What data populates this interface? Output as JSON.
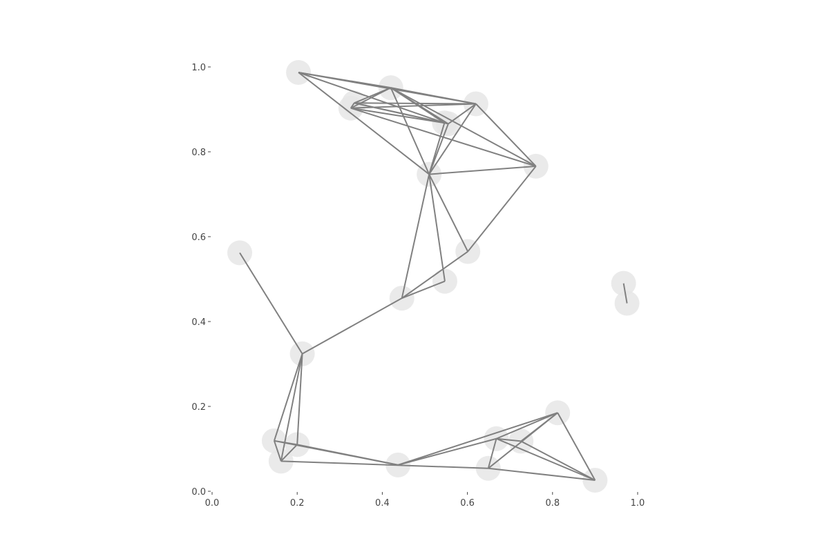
{
  "chart_data": {
    "type": "scatter",
    "title": "",
    "xlabel": "",
    "ylabel": "",
    "xlim": [
      0.0,
      1.0
    ],
    "ylim": [
      0.0,
      1.0
    ],
    "grid": false,
    "x_ticks": [
      "0.0",
      "0.2",
      "0.4",
      "0.6",
      "0.8",
      "1.0"
    ],
    "y_ticks": [
      "0.0",
      "0.2",
      "0.4",
      "0.6",
      "0.8",
      "1.0"
    ],
    "colors": {
      "edge": "#808080",
      "node": "#e6e6e6",
      "tick": "#444444"
    },
    "nodes": [
      {
        "x": 0.203,
        "y": 0.987
      },
      {
        "x": 0.334,
        "y": 0.915
      },
      {
        "x": 0.326,
        "y": 0.903
      },
      {
        "x": 0.42,
        "y": 0.951
      },
      {
        "x": 0.62,
        "y": 0.913
      },
      {
        "x": 0.546,
        "y": 0.868
      },
      {
        "x": 0.555,
        "y": 0.866
      },
      {
        "x": 0.761,
        "y": 0.766
      },
      {
        "x": 0.51,
        "y": 0.747
      },
      {
        "x": 0.065,
        "y": 0.562
      },
      {
        "x": 0.601,
        "y": 0.565
      },
      {
        "x": 0.547,
        "y": 0.495
      },
      {
        "x": 0.446,
        "y": 0.455
      },
      {
        "x": 0.967,
        "y": 0.49
      },
      {
        "x": 0.975,
        "y": 0.443
      },
      {
        "x": 0.212,
        "y": 0.324
      },
      {
        "x": 0.812,
        "y": 0.185
      },
      {
        "x": 0.146,
        "y": 0.119
      },
      {
        "x": 0.2,
        "y": 0.11
      },
      {
        "x": 0.162,
        "y": 0.071
      },
      {
        "x": 0.668,
        "y": 0.124
      },
      {
        "x": 0.726,
        "y": 0.118
      },
      {
        "x": 0.437,
        "y": 0.062
      },
      {
        "x": 0.649,
        "y": 0.054
      },
      {
        "x": 0.9,
        "y": 0.026
      }
    ],
    "edges": [
      [
        0,
        3
      ],
      [
        0,
        4
      ],
      [
        0,
        8
      ],
      [
        0,
        5
      ],
      [
        1,
        3
      ],
      [
        1,
        2
      ],
      [
        1,
        5
      ],
      [
        1,
        6
      ],
      [
        1,
        4
      ],
      [
        2,
        3
      ],
      [
        2,
        5
      ],
      [
        2,
        7
      ],
      [
        2,
        4
      ],
      [
        3,
        4
      ],
      [
        3,
        6
      ],
      [
        3,
        8
      ],
      [
        3,
        7
      ],
      [
        3,
        5
      ],
      [
        4,
        8
      ],
      [
        4,
        7
      ],
      [
        4,
        6
      ],
      [
        5,
        6
      ],
      [
        5,
        8
      ],
      [
        6,
        8
      ],
      [
        7,
        8
      ],
      [
        7,
        10
      ],
      [
        8,
        11
      ],
      [
        8,
        10
      ],
      [
        8,
        12
      ],
      [
        9,
        15
      ],
      [
        10,
        12
      ],
      [
        11,
        12
      ],
      [
        12,
        15
      ],
      [
        13,
        14
      ],
      [
        15,
        17
      ],
      [
        15,
        19
      ],
      [
        15,
        18
      ],
      [
        17,
        18
      ],
      [
        17,
        19
      ],
      [
        18,
        19
      ],
      [
        17,
        22
      ],
      [
        18,
        22
      ],
      [
        19,
        23
      ],
      [
        22,
        16
      ],
      [
        22,
        20
      ],
      [
        16,
        20
      ],
      [
        16,
        23
      ],
      [
        16,
        24
      ],
      [
        16,
        21
      ],
      [
        20,
        21
      ],
      [
        20,
        23
      ],
      [
        20,
        24
      ],
      [
        21,
        24
      ],
      [
        23,
        24
      ]
    ]
  }
}
